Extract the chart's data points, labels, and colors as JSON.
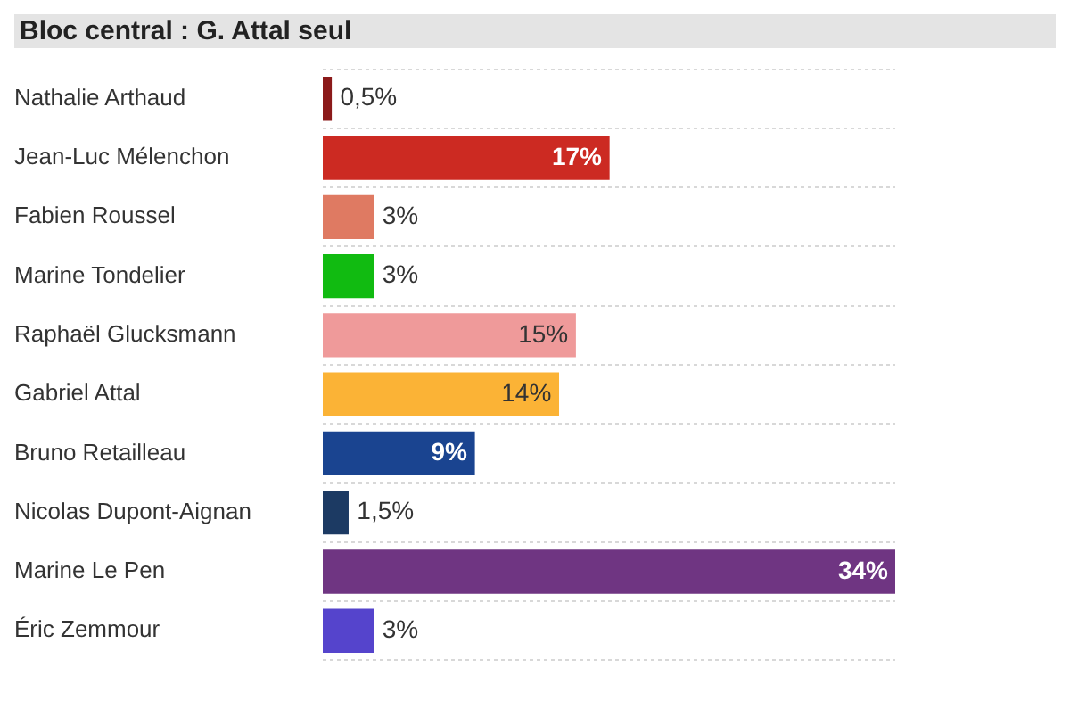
{
  "chart_data": {
    "type": "bar",
    "orientation": "horizontal",
    "title": "Bloc central : G. Attal seul",
    "grid": "y",
    "categories": [
      "Nathalie Arthaud",
      "Jean-Luc Mélenchon",
      "Fabien Roussel",
      "Marine Tondelier",
      "Raphaël Glucksmann",
      "Gabriel Attal",
      "Bruno Retailleau",
      "Nicolas Dupont-Aignan",
      "Marine Le Pen",
      "Éric Zemmour"
    ],
    "values": [
      0.5,
      17,
      3,
      3,
      15,
      14,
      9,
      1.5,
      34,
      3
    ],
    "value_labels": [
      "0,5%",
      "17%",
      "3%",
      "3%",
      "15%",
      "14%",
      "9%",
      "1,5%",
      "34%",
      "3%"
    ],
    "colors": [
      "#8b1a1a",
      "#cc2a22",
      "#df7a62",
      "#11bb11",
      "#ef9a9a",
      "#fbb336",
      "#1a4490",
      "#1c3a63",
      "#6f3582",
      "#5544cc"
    ]
  }
}
